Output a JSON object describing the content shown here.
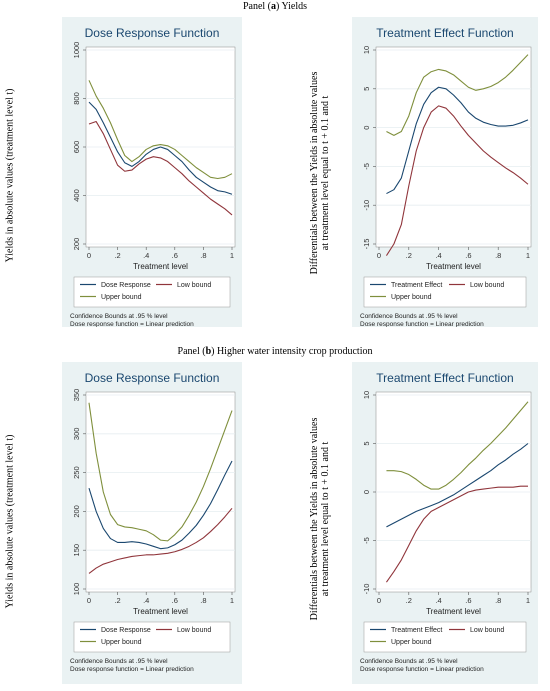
{
  "panels": {
    "a": {
      "prefix": "Panel (",
      "letter": "a",
      "suffix": ") Yields"
    },
    "b": {
      "prefix": "Panel (",
      "letter": "b",
      "suffix": ") Higher water intensity crop production"
    }
  },
  "outer_labels": {
    "dose_ylabel": "Yields in absolute values (treatment level t)",
    "te_ylabel_line1": "Differentials between the Yields in absolute values",
    "te_ylabel_line2": "at treatment level equal to t + 0.1 and t"
  },
  "colors": {
    "background": "#eaf2f3",
    "title": "#1a476f",
    "main_line": "#1a476f",
    "low_line": "#90353b",
    "upper_line": "#7f8f3c"
  },
  "chart_data": [
    {
      "type": "line",
      "title": "Dose Response Function",
      "xlabel": "Treatment level",
      "ylabel": "",
      "xlim": [
        0,
        1
      ],
      "ylim": [
        200,
        1000
      ],
      "xticks": [
        0,
        0.2,
        0.4,
        0.6,
        0.8,
        1
      ],
      "xtick_labels": [
        "0",
        ".2",
        ".4",
        ".6",
        ".8",
        "1"
      ],
      "yticks": [
        200,
        400,
        600,
        800,
        1000
      ],
      "ytick_labels": [
        "200",
        "400",
        "600",
        "800",
        "1000"
      ],
      "legend": [
        "Dose Response",
        "Low bound",
        "Upper bound"
      ],
      "notes": [
        "Confidence Bounds at .95 % level",
        "Dose response function = Linear prediction"
      ],
      "x": [
        0,
        0.05,
        0.1,
        0.15,
        0.2,
        0.25,
        0.3,
        0.35,
        0.4,
        0.45,
        0.5,
        0.55,
        0.6,
        0.65,
        0.7,
        0.75,
        0.8,
        0.85,
        0.9,
        0.95,
        1
      ],
      "series": [
        {
          "name": "Dose Response",
          "values": [
            785,
            755,
            700,
            640,
            580,
            535,
            520,
            540,
            570,
            590,
            600,
            590,
            565,
            540,
            505,
            475,
            455,
            435,
            420,
            415,
            405
          ]
        },
        {
          "name": "Low bound",
          "values": [
            695,
            705,
            655,
            590,
            525,
            500,
            505,
            530,
            550,
            560,
            555,
            540,
            515,
            490,
            460,
            435,
            410,
            385,
            365,
            345,
            320
          ]
        },
        {
          "name": "Upper bound",
          "values": [
            875,
            810,
            760,
            700,
            630,
            565,
            540,
            560,
            590,
            605,
            610,
            605,
            590,
            565,
            540,
            515,
            495,
            475,
            470,
            475,
            490
          ]
        }
      ]
    },
    {
      "type": "line",
      "title": "Treatment Effect Function",
      "xlabel": "Treatment level",
      "ylabel": "",
      "xlim": [
        0,
        1
      ],
      "ylim": [
        -15,
        10
      ],
      "xticks": [
        0,
        0.2,
        0.4,
        0.6,
        0.8,
        1
      ],
      "xtick_labels": [
        "0",
        ".2",
        ".4",
        ".6",
        ".8",
        "1"
      ],
      "yticks": [
        -15,
        -10,
        -5,
        0,
        5,
        10
      ],
      "ytick_labels": [
        "-15",
        "-10",
        "-5",
        "0",
        "5",
        "10"
      ],
      "legend": [
        "Treatment Effect",
        "Low bound",
        "Upper bound"
      ],
      "notes": [
        "Confidence Bounds at .95 % level",
        "Dose response function = Linear prediction"
      ],
      "x": [
        0.05,
        0.1,
        0.15,
        0.2,
        0.25,
        0.3,
        0.35,
        0.4,
        0.45,
        0.5,
        0.55,
        0.6,
        0.65,
        0.7,
        0.75,
        0.8,
        0.85,
        0.9,
        0.95,
        1
      ],
      "series": [
        {
          "name": "Treatment Effect",
          "values": [
            -8.5,
            -8,
            -6.5,
            -3,
            0.5,
            3,
            4.5,
            5.2,
            5,
            4.2,
            3.2,
            2,
            1.2,
            0.7,
            0.4,
            0.2,
            0.2,
            0.3,
            0.6,
            1
          ]
        },
        {
          "name": "Low bound",
          "values": [
            -16.5,
            -15,
            -12.5,
            -7.5,
            -3,
            0,
            2,
            2.8,
            2.5,
            1.5,
            0.2,
            -1,
            -2,
            -3,
            -3.8,
            -4.5,
            -5.2,
            -5.8,
            -6.5,
            -7.3
          ]
        },
        {
          "name": "Upper bound",
          "values": [
            -0.5,
            -1,
            -0.5,
            1.5,
            4.5,
            6.5,
            7.2,
            7.5,
            7.3,
            6.8,
            6,
            5.2,
            4.8,
            5,
            5.3,
            5.8,
            6.5,
            7.4,
            8.4,
            9.4
          ]
        }
      ]
    },
    {
      "type": "line",
      "title": "Dose Response Function",
      "xlabel": "Treatment level",
      "ylabel": "",
      "xlim": [
        0,
        1
      ],
      "ylim": [
        100,
        350
      ],
      "xticks": [
        0,
        0.2,
        0.4,
        0.6,
        0.8,
        1
      ],
      "xtick_labels": [
        "0",
        ".2",
        ".4",
        ".6",
        ".8",
        "1"
      ],
      "yticks": [
        100,
        150,
        200,
        250,
        300,
        350
      ],
      "ytick_labels": [
        "100",
        "150",
        "200",
        "250",
        "300",
        "350"
      ],
      "legend": [
        "Dose Response",
        "Low bound",
        "Upper bound"
      ],
      "notes": [
        "Confidence Bounds at .95 % level",
        "Dose response function = Linear prediction"
      ],
      "x": [
        0,
        0.05,
        0.1,
        0.15,
        0.2,
        0.25,
        0.3,
        0.35,
        0.4,
        0.45,
        0.5,
        0.55,
        0.6,
        0.65,
        0.7,
        0.75,
        0.8,
        0.85,
        0.9,
        0.95,
        1
      ],
      "series": [
        {
          "name": "Dose Response",
          "values": [
            230,
            200,
            178,
            165,
            160,
            160,
            161,
            160,
            158,
            155,
            152,
            153,
            157,
            163,
            172,
            182,
            195,
            210,
            228,
            247,
            265
          ]
        },
        {
          "name": "Low bound",
          "values": [
            120,
            127,
            132,
            135,
            138,
            140,
            142,
            143,
            144,
            144,
            145,
            146,
            148,
            151,
            155,
            160,
            166,
            174,
            183,
            193,
            204
          ]
        },
        {
          "name": "Upper bound",
          "values": [
            340,
            275,
            225,
            196,
            183,
            180,
            179,
            177,
            175,
            170,
            163,
            162,
            170,
            180,
            195,
            212,
            232,
            255,
            280,
            305,
            330
          ]
        }
      ]
    },
    {
      "type": "line",
      "title": "Treatment Effect Function",
      "xlabel": "Treatment level",
      "ylabel": "",
      "xlim": [
        0,
        1
      ],
      "ylim": [
        -10,
        10
      ],
      "xticks": [
        0,
        0.2,
        0.4,
        0.6,
        0.8,
        1
      ],
      "xtick_labels": [
        "0",
        ".2",
        ".4",
        ".6",
        ".8",
        "1"
      ],
      "yticks": [
        -10,
        -5,
        0,
        5,
        10
      ],
      "ytick_labels": [
        "-10",
        "-5",
        "0",
        "5",
        "10"
      ],
      "legend": [
        "Treatment Effect",
        "Low bound",
        "Upper bound"
      ],
      "notes": [
        "Confidence Bounds at .95 % level",
        "Dose response function = Linear prediction"
      ],
      "x": [
        0.05,
        0.1,
        0.15,
        0.2,
        0.25,
        0.3,
        0.35,
        0.4,
        0.45,
        0.5,
        0.55,
        0.6,
        0.65,
        0.7,
        0.75,
        0.8,
        0.85,
        0.9,
        0.95,
        1
      ],
      "series": [
        {
          "name": "Treatment Effect",
          "values": [
            -3.6,
            -3.2,
            -2.8,
            -2.4,
            -2,
            -1.7,
            -1.4,
            -1.1,
            -0.7,
            -0.3,
            0.2,
            0.7,
            1.2,
            1.7,
            2.2,
            2.8,
            3.3,
            3.9,
            4.4,
            5
          ]
        },
        {
          "name": "Low bound",
          "values": [
            -9.3,
            -8.2,
            -7,
            -5.5,
            -4,
            -2.8,
            -2,
            -1.6,
            -1.2,
            -0.8,
            -0.4,
            0,
            0.2,
            0.3,
            0.4,
            0.5,
            0.5,
            0.5,
            0.6,
            0.6
          ]
        },
        {
          "name": "Upper bound",
          "values": [
            2.2,
            2.2,
            2.1,
            1.8,
            1.3,
            0.7,
            0.3,
            0.3,
            0.7,
            1.3,
            2,
            2.8,
            3.5,
            4.3,
            5,
            5.8,
            6.6,
            7.5,
            8.4,
            9.3
          ]
        }
      ]
    }
  ]
}
